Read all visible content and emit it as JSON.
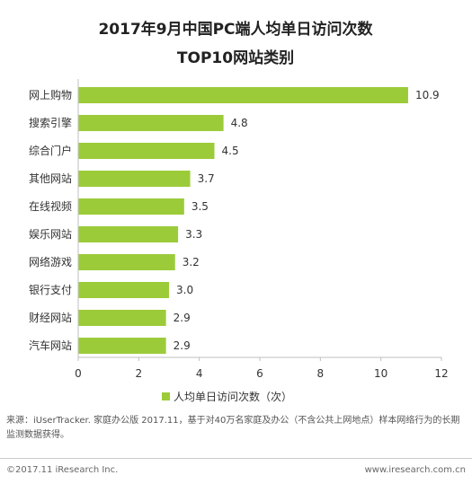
{
  "chart_data": {
    "type": "bar",
    "orientation": "horizontal",
    "title_line1": "2017年9月中国PC端人均单日访问次数",
    "title_line2": "TOP10网站类别",
    "categories": [
      "网上购物",
      "搜索引擎",
      "综合门户",
      "其他网站",
      "在线视频",
      "娱乐网站",
      "网络游戏",
      "银行支付",
      "财经网站",
      "汽车网站"
    ],
    "series": [
      {
        "name": "人均单日访问次数（次）",
        "values": [
          10.9,
          4.8,
          4.5,
          3.7,
          3.5,
          3.3,
          3.2,
          3.0,
          2.9,
          2.9
        ],
        "value_labels": [
          "10.9",
          "4.8",
          "4.5",
          "3.7",
          "3.5",
          "3.3",
          "3.2",
          "3.0",
          "2.9",
          "2.9"
        ]
      }
    ],
    "xlim": [
      0,
      12
    ],
    "xticks": [
      0,
      2,
      4,
      6,
      8,
      10,
      12
    ],
    "grid": false,
    "legend_position": "bottom",
    "bar_color": "#9CCB3A"
  },
  "note": "来源：iUserTracker. 家庭办公版 2017.11，基于对40万名家庭及办公（不含公共上网地点）样本网络行为的长期监测数据获得。",
  "footer": {
    "copyright": "©2017.11 iResearch Inc.",
    "website": "www.iresearch.com.cn"
  }
}
